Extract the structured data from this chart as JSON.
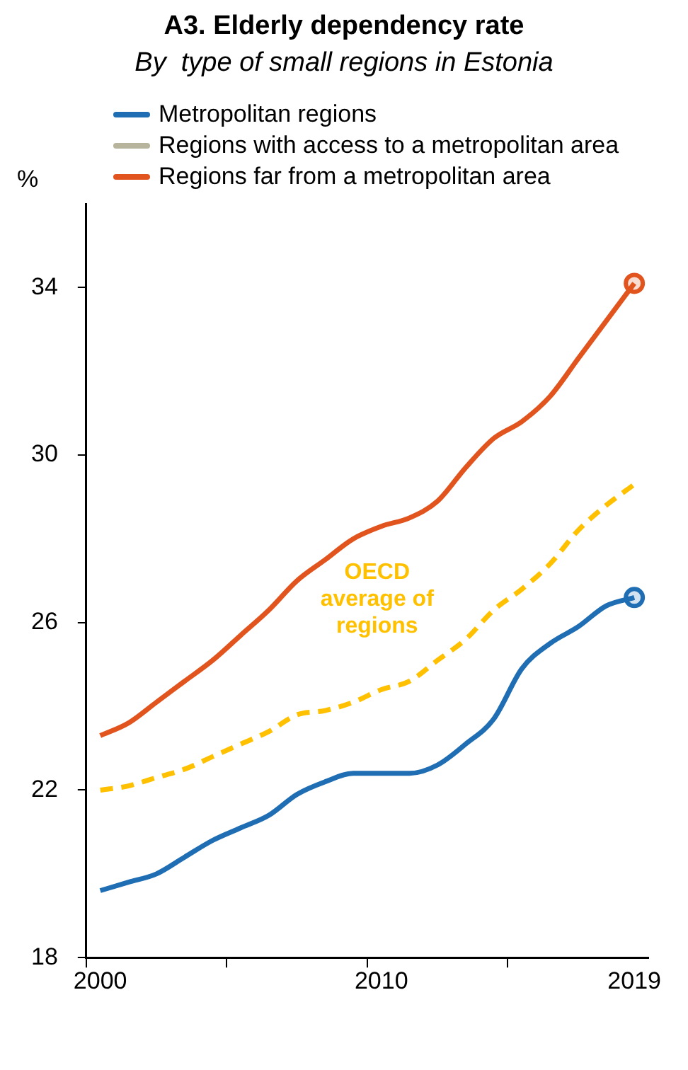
{
  "chart_data": {
    "type": "line",
    "title": "A3. Elderly dependency rate",
    "subtitle": "By  type of small regions in Estonia",
    "ylabel": "%",
    "categories": [
      "2000",
      null,
      null,
      null,
      null,
      null,
      null,
      null,
      null,
      null,
      "2010",
      null,
      null,
      null,
      null,
      null,
      null,
      null,
      null,
      "2019"
    ],
    "series": [
      {
        "name": "Metropolitan regions",
        "color": "#1f6eb4",
        "values": [
          19.6,
          19.8,
          20.0,
          20.4,
          20.8,
          21.1,
          21.4,
          21.9,
          22.2,
          22.4,
          22.4,
          22.4,
          22.6,
          23.1,
          23.7,
          24.9,
          25.5,
          25.9,
          26.4,
          26.6
        ]
      },
      {
        "name": "Regions with access to a metropolitan area",
        "color": "#b7b49e",
        "values": [
          null,
          null,
          null,
          null,
          null,
          null,
          null,
          null,
          null,
          null,
          null,
          null,
          null,
          null,
          null,
          null,
          null,
          null,
          null,
          null
        ]
      },
      {
        "name": "Regions far from a metropolitan area",
        "color": "#e2541e",
        "values": [
          23.3,
          23.6,
          24.1,
          24.6,
          25.1,
          25.7,
          26.3,
          27.0,
          27.5,
          28.0,
          28.3,
          28.5,
          28.9,
          29.7,
          30.4,
          30.8,
          31.4,
          32.3,
          33.2,
          34.1
        ]
      },
      {
        "color": "#ffc000",
        "line_style": "dashed",
        "values": [
          22.0,
          22.1,
          22.3,
          22.5,
          22.8,
          23.1,
          23.4,
          23.8,
          23.9,
          24.1,
          24.4,
          24.6,
          25.1,
          25.6,
          26.3,
          26.8,
          27.4,
          28.2,
          28.8,
          29.3
        ]
      },
      {
        "type": "scatter",
        "marker": "circle",
        "color": "#1f6eb4",
        "values": [
          null,
          null,
          null,
          null,
          null,
          null,
          null,
          null,
          null,
          null,
          null,
          null,
          null,
          null,
          null,
          null,
          null,
          null,
          null,
          26.6
        ]
      },
      {
        "type": "scatter",
        "marker": "circle",
        "color": "#e2541e",
        "values": [
          null,
          null,
          null,
          null,
          null,
          null,
          null,
          null,
          null,
          null,
          null,
          null,
          null,
          null,
          null,
          null,
          null,
          null,
          null,
          34.1
        ]
      }
    ],
    "annotations": [
      "OECD average of regions"
    ],
    "ylim": [
      18,
      36
    ],
    "yticks": [
      18,
      22,
      26,
      30,
      34
    ],
    "grid": false,
    "legend": "top left"
  }
}
